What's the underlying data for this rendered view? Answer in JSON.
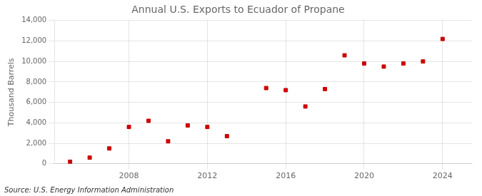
{
  "chart_data": {
    "type": "scatter",
    "title": "Annual U.S. Exports to Ecuador of Propane",
    "ylabel": "Thousand Barrels",
    "annotations": [
      "Source: U.S. Energy Information Administration"
    ],
    "x": [
      2005,
      2006,
      2007,
      2008,
      2009,
      2010,
      2011,
      2012,
      2013,
      2015,
      2016,
      2017,
      2018,
      2019,
      2020,
      2021,
      2022,
      2023,
      2024
    ],
    "values": [
      200,
      600,
      1500,
      3600,
      4200,
      2200,
      3750,
      3600,
      2700,
      7400,
      7200,
      5600,
      7300,
      10600,
      9800,
      9500,
      9800,
      10000,
      12200
    ],
    "color": "#cc0000",
    "marker": "square",
    "xlim": [
      2004.2,
      2025.5
    ],
    "xticks": [
      2008,
      2012,
      2016,
      2020,
      2024
    ],
    "ylim": [
      0,
      14000
    ],
    "yticks": [
      0,
      {
        "value": 2000,
        "label": "2,000"
      },
      {
        "value": 4000,
        "label": "4,000"
      },
      {
        "value": 6000,
        "label": "6,000"
      },
      {
        "value": 8000,
        "label": "8,000"
      },
      {
        "value": 10000,
        "label": "10,000"
      },
      {
        "value": 12000,
        "label": "12,000"
      },
      {
        "value": 14000,
        "label": "14,000"
      }
    ],
    "grid": true
  }
}
